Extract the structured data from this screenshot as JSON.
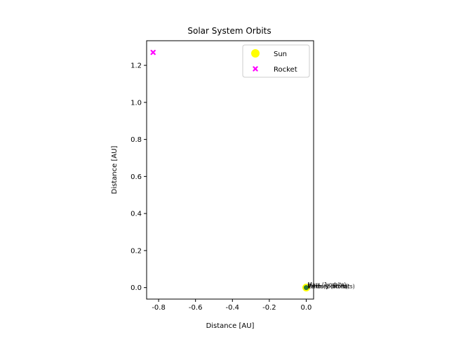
{
  "chart_data": {
    "type": "scatter",
    "title": "Solar System Orbits",
    "xlabel": "Distance [AU]",
    "ylabel": "Distance [AU]",
    "xlim": [
      -0.865,
      0.04
    ],
    "ylim": [
      -0.062,
      1.333
    ],
    "xticks": [
      "-0.8",
      "-0.6",
      "-0.4",
      "-0.2",
      "0.0"
    ],
    "xtick_values": [
      -0.8,
      -0.6,
      -0.4,
      -0.2,
      0.0
    ],
    "yticks": [
      "0.0",
      "0.2",
      "0.4",
      "0.6",
      "0.8",
      "1.0",
      "1.2"
    ],
    "ytick_values": [
      0.0,
      0.2,
      0.4,
      0.6,
      0.8,
      1.0,
      1.2
    ],
    "grid": false,
    "legend_position": "top-right",
    "series": [
      {
        "name": "Sun",
        "color": "#ffff00",
        "marker": "circle",
        "points": [
          {
            "x": 0.0,
            "y": 0.0
          }
        ]
      },
      {
        "name": "Rocket",
        "color": "#ff00ff",
        "marker": "x",
        "points": [
          {
            "x": -0.83,
            "y": 1.27
          }
        ]
      }
    ],
    "extra_points": [
      {
        "x": 0.0,
        "y": 0.0,
        "color": "#2e7d32"
      }
    ],
    "annotations": [
      {
        "text": "Mars (1 orbits)",
        "x": 0.0,
        "y": 0.01
      },
      {
        "text": "Venus (5 orbits)",
        "x": 0.0,
        "y": 0.0
      },
      {
        "text": "Earth (3 orbits)",
        "x": 0.0,
        "y": 0.0
      },
      {
        "text": "Mercury (8 orbits)",
        "x": 0.0,
        "y": 0.0
      }
    ]
  }
}
